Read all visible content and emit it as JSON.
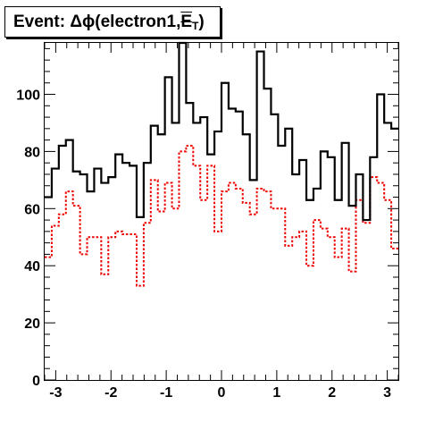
{
  "chart_data": {
    "type": "histogram",
    "title": {
      "prefix": "Event: ",
      "delta": "Δ",
      "phi": "ϕ",
      "arg": "(electron1,",
      "met": "E",
      "met_sub": "T",
      "close": ")"
    },
    "xlabel": "",
    "ylabel": "",
    "xlim": [
      -3.2,
      3.2
    ],
    "ylim": [
      0,
      118
    ],
    "x_ticks": [
      -3,
      -2,
      -1,
      0,
      1,
      2,
      3
    ],
    "x_tick_labels": [
      "-3",
      "-2",
      "-1",
      "0",
      "1",
      "2",
      "3"
    ],
    "y_ticks": [
      0,
      20,
      40,
      60,
      80,
      100
    ],
    "y_tick_labels": [
      "0",
      "20",
      "40",
      "60",
      "80",
      "100"
    ],
    "grid": false,
    "bin_edges_range": [
      -3.2,
      3.2
    ],
    "n_bins": 50,
    "series": [
      {
        "style": "solid",
        "color": "#000000",
        "values": [
          64,
          74,
          82,
          84,
          73,
          72,
          66,
          74,
          69,
          71,
          79,
          76,
          75,
          57,
          76,
          89,
          86,
          106,
          90,
          118,
          97,
          90,
          92,
          79,
          87,
          104,
          95,
          94,
          86,
          70,
          115,
          102,
          93,
          82,
          88,
          72,
          77,
          63,
          67,
          80,
          78,
          63,
          83,
          61,
          72,
          56,
          78,
          100,
          90,
          88
        ]
      },
      {
        "style": "dotted",
        "color": "#ee0000",
        "values": [
          43,
          54,
          58,
          66,
          61,
          44,
          50,
          50,
          37,
          50,
          52,
          51,
          51,
          33,
          55,
          70,
          59,
          69,
          60,
          80,
          82,
          75,
          63,
          75,
          52,
          66,
          69,
          67,
          62,
          58,
          67,
          66,
          60,
          60,
          47,
          50,
          52,
          40,
          56,
          53,
          50,
          43,
          53,
          38,
          63,
          55,
          71,
          69,
          63,
          46
        ]
      }
    ]
  }
}
